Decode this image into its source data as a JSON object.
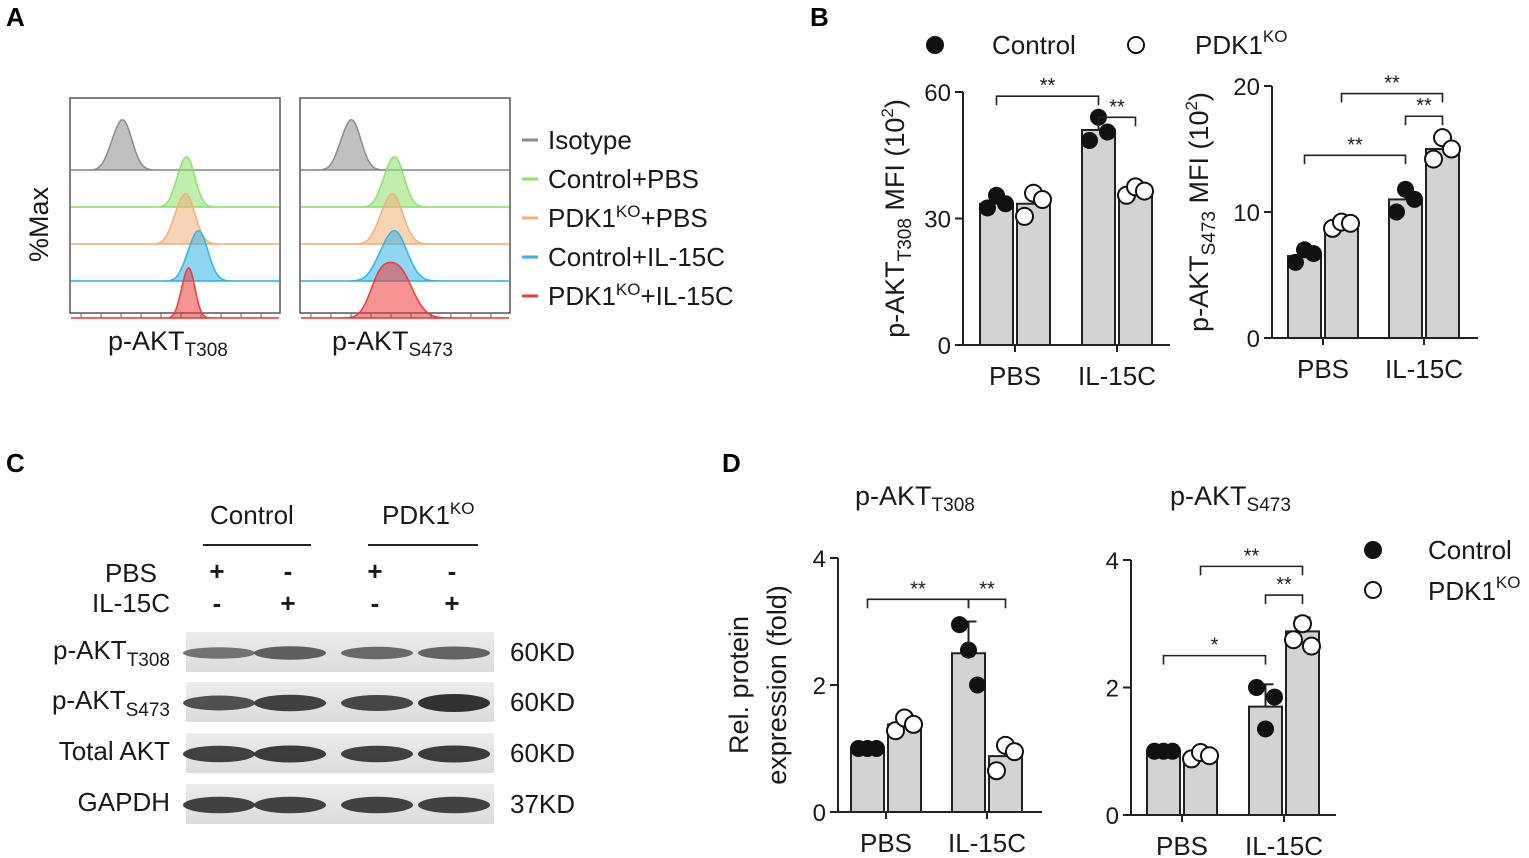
{
  "panels": {
    "A": "A",
    "B": "B",
    "C": "C",
    "D": "D"
  },
  "colors": {
    "isotype": "#8c8c8c",
    "control_pbs": "#8ee06e",
    "pdk1ko_pbs": "#f2b07a",
    "control_il15c": "#32b4e6",
    "pdk1ko_il15c": "#ee3b3b",
    "bar": "#d3d3d3"
  },
  "flow": {
    "ylabel": "%Max",
    "xlabel_left_main": "p-AKT",
    "xlabel_left_sub": "T308",
    "xlabel_right_main": "p-AKT",
    "xlabel_right_sub": "S473",
    "legend": [
      {
        "main": "Isotype",
        "sup": "",
        "tail": "",
        "color_key": "isotype"
      },
      {
        "main": "Control+PBS",
        "sup": "",
        "tail": "",
        "color_key": "control_pbs"
      },
      {
        "main": "PDK1",
        "sup": "KO",
        "tail": "+PBS",
        "color_key": "pdk1ko_pbs"
      },
      {
        "main": "Control+IL-15C",
        "sup": "",
        "tail": "",
        "color_key": "control_il15c"
      },
      {
        "main": "PDK1",
        "sup": "KO",
        "tail": "+IL-15C",
        "color_key": "pdk1ko_il15c"
      }
    ]
  },
  "legend_groups": {
    "control": "Control",
    "ko_main": "PDK1",
    "ko_sup": "KO"
  },
  "chart_data": [
    {
      "type": "bar",
      "panel": "B",
      "title": "",
      "ylabel_main": "p-AKT",
      "ylabel_sub": "T308",
      "ylabel_tail": " MFI (10",
      "ylabel_sup": "2",
      "ylabel_end": ")",
      "categories": [
        "PBS",
        "IL-15C"
      ],
      "ylim": [
        0,
        60
      ],
      "yticks": [
        0,
        30,
        60
      ],
      "series": [
        {
          "name": "Control",
          "values": [
            33.5,
            51
          ],
          "sd": [
            1.5,
            2.5
          ],
          "points": [
            [
              32.5,
              35.5,
              33.5
            ],
            [
              48.5,
              54,
              50.5
            ]
          ]
        },
        {
          "name": "PDK1KO",
          "values": [
            33.5,
            36.5
          ],
          "sd": [
            2.5,
            1
          ],
          "points": [
            [
              30.5,
              36,
              34.5
            ],
            [
              35.5,
              37.5,
              36.5
            ]
          ]
        }
      ],
      "significance": [
        {
          "from": [
            0,
            0
          ],
          "to": [
            1,
            0
          ],
          "label": "**",
          "level": 59
        },
        {
          "from": [
            1,
            0
          ],
          "to": [
            1,
            1
          ],
          "label": "**",
          "level": 54
        }
      ]
    },
    {
      "type": "bar",
      "panel": "B",
      "title": "",
      "ylabel_main": "p-AKT",
      "ylabel_sub": "S473",
      "ylabel_tail": " MFI (10",
      "ylabel_sup": "2",
      "ylabel_end": ")",
      "categories": [
        "PBS",
        "IL-15C"
      ],
      "ylim": [
        0,
        20
      ],
      "yticks": [
        0,
        10,
        20
      ],
      "series": [
        {
          "name": "Control",
          "values": [
            6.5,
            11
          ],
          "sd": [
            0.5,
            0.8
          ],
          "points": [
            [
              6,
              7,
              6.7
            ],
            [
              10,
              11.8,
              11
            ]
          ]
        },
        {
          "name": "PDK1KO",
          "values": [
            9,
            15
          ],
          "sd": [
            0.3,
            0.7
          ],
          "points": [
            [
              8.7,
              9.2,
              9.1
            ],
            [
              14.2,
              15.9,
              15
            ]
          ]
        }
      ],
      "significance": [
        {
          "from": [
            0,
            0
          ],
          "to": [
            1,
            0
          ],
          "label": "**",
          "level": 14.5
        },
        {
          "from": [
            1,
            0
          ],
          "to": [
            1,
            1
          ],
          "label": "**",
          "level": 17.6
        },
        {
          "from": [
            0,
            1
          ],
          "to": [
            1,
            1
          ],
          "label": "**",
          "level": 19.4
        }
      ]
    },
    {
      "type": "bar",
      "panel": "D",
      "title_main": "p-AKT",
      "title_sub": "T308",
      "ylabel_line1": "Rel. protein",
      "ylabel_line2": "expression (fold)",
      "categories": [
        "PBS",
        "IL-15C"
      ],
      "ylim": [
        0,
        4
      ],
      "yticks": [
        0,
        2,
        4
      ],
      "series": [
        {
          "name": "Control",
          "values": [
            1,
            2.5
          ],
          "sd": [
            0,
            0.5
          ],
          "points": [
            [
              1,
              1,
              1
            ],
            [
              2.95,
              2.55,
              2.0
            ]
          ]
        },
        {
          "name": "PDK1KO",
          "values": [
            1.38,
            0.88
          ],
          "sd": [
            0.12,
            0.22
          ],
          "points": [
            [
              1.28,
              1.48,
              1.38
            ],
            [
              0.65,
              1.05,
              0.95
            ]
          ]
        }
      ],
      "significance": [
        {
          "from": [
            0,
            0
          ],
          "to": [
            1,
            0
          ],
          "label": "**",
          "level": 3.35
        },
        {
          "from": [
            1,
            0
          ],
          "to": [
            1,
            1
          ],
          "label": "**",
          "level": 3.35
        }
      ]
    },
    {
      "type": "bar",
      "panel": "D",
      "title_main": "p-AKT",
      "title_sub": "S473",
      "categories": [
        "PBS",
        "IL-15C"
      ],
      "ylim": [
        0,
        4
      ],
      "yticks": [
        0,
        2,
        4
      ],
      "series": [
        {
          "name": "Control",
          "values": [
            1,
            1.7
          ],
          "sd": [
            0,
            0.35
          ],
          "points": [
            [
              1,
              1,
              1
            ],
            [
              2.0,
              1.35,
              1.85
            ]
          ]
        },
        {
          "name": "PDK1KO",
          "values": [
            0.93,
            2.88
          ],
          "sd": [
            0.06,
            0.22
          ],
          "points": [
            [
              0.88,
              0.98,
              0.93
            ],
            [
              2.75,
              3.0,
              2.65
            ]
          ]
        }
      ],
      "significance": [
        {
          "from": [
            0,
            0
          ],
          "to": [
            1,
            0
          ],
          "label": "*",
          "level": 2.5
        },
        {
          "from": [
            1,
            0
          ],
          "to": [
            1,
            1
          ],
          "label": "**",
          "level": 3.45
        },
        {
          "from": [
            0,
            1
          ],
          "to": [
            1,
            1
          ],
          "label": "**",
          "level": 3.9
        }
      ]
    }
  ],
  "blot": {
    "group_control": "Control",
    "group_ko_main": "PDK1",
    "group_ko_sup": "KO",
    "pbs_label": "PBS",
    "il15c_label": "IL-15C",
    "pbs_signs": [
      "+",
      "-",
      "+",
      "-"
    ],
    "il15c_signs": [
      "-",
      "+",
      "-",
      "+"
    ],
    "rows": [
      {
        "main": "p-AKT",
        "sub": "T308",
        "size": "60KD",
        "intensities": [
          0.35,
          0.55,
          0.45,
          0.5
        ]
      },
      {
        "main": "p-AKT",
        "sub": "S473",
        "size": "60KD",
        "intensities": [
          0.7,
          0.85,
          0.8,
          1.0
        ]
      },
      {
        "main": "Total AKT",
        "sub": "",
        "size": "60KD",
        "intensities": [
          0.85,
          0.9,
          0.85,
          0.9
        ]
      },
      {
        "main": "GAPDH",
        "sub": "",
        "size": "37KD",
        "intensities": [
          0.85,
          0.85,
          0.85,
          0.85
        ]
      }
    ]
  }
}
